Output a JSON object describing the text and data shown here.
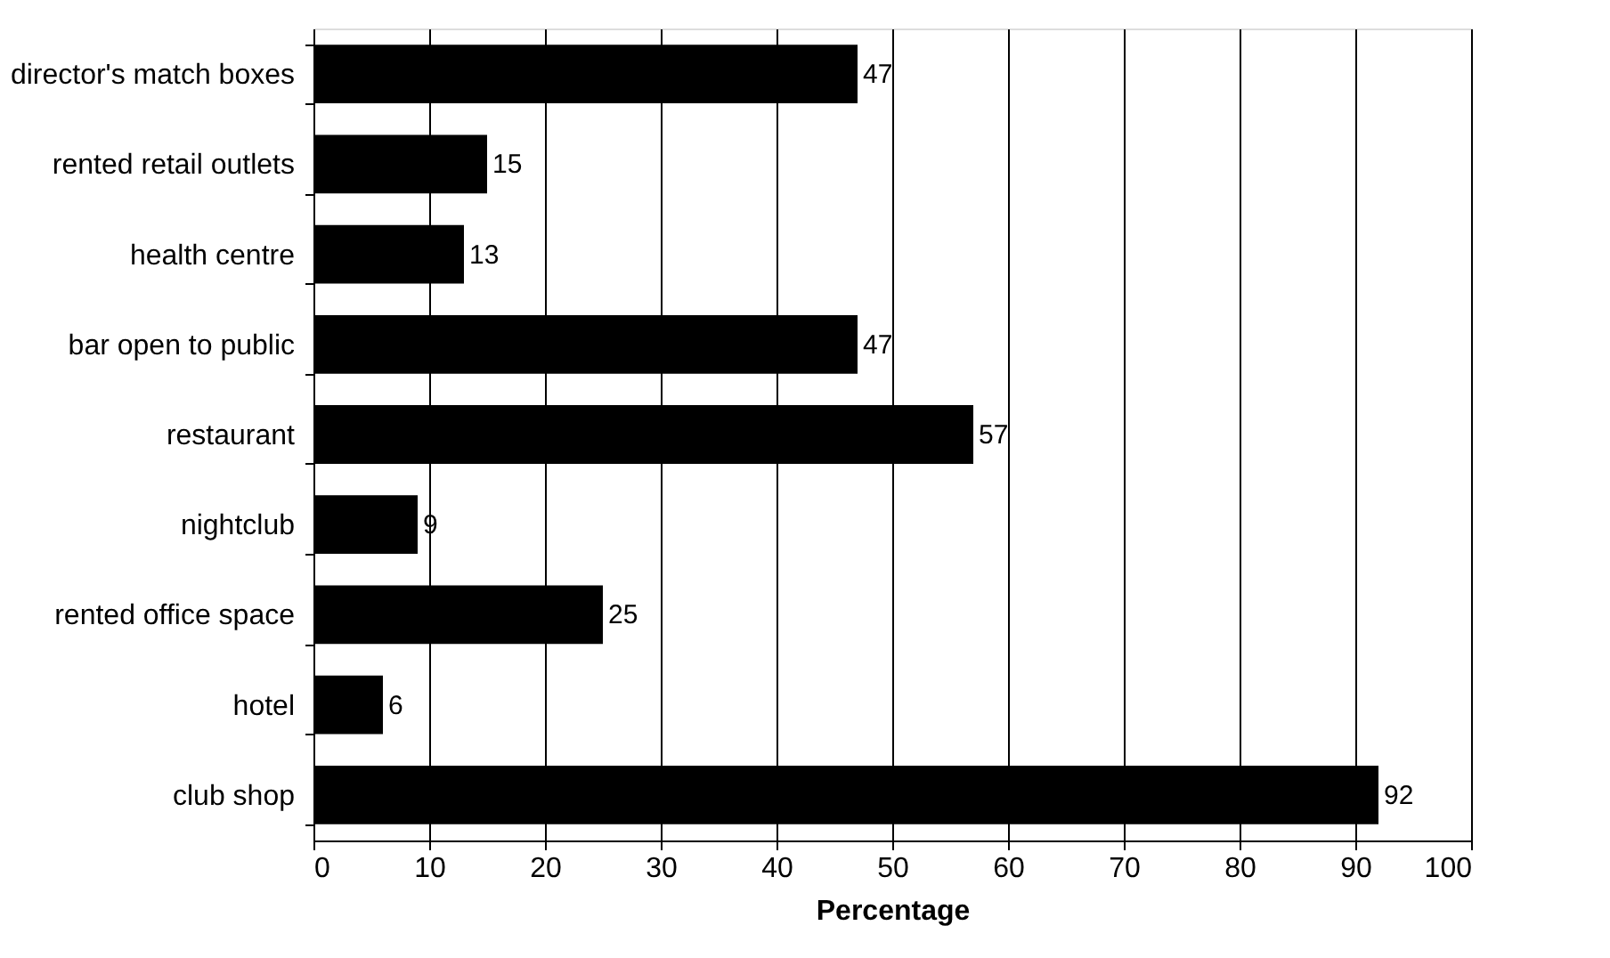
{
  "chart_data": {
    "type": "bar",
    "orientation": "horizontal",
    "xlabel": "Percentage",
    "categories": [
      "director's match boxes",
      "rented retail outlets",
      "health centre",
      "bar open to public",
      "restaurant",
      "nightclub",
      "rented office space",
      "hotel",
      "club shop"
    ],
    "values": [
      47,
      15,
      13,
      47,
      57,
      9,
      25,
      6,
      92
    ],
    "color": "#000000",
    "xlim": [
      0,
      100
    ],
    "xticks": [
      0,
      10,
      20,
      30,
      40,
      50,
      60,
      70,
      80,
      90,
      100
    ],
    "grid": "x",
    "data_labels": true
  }
}
